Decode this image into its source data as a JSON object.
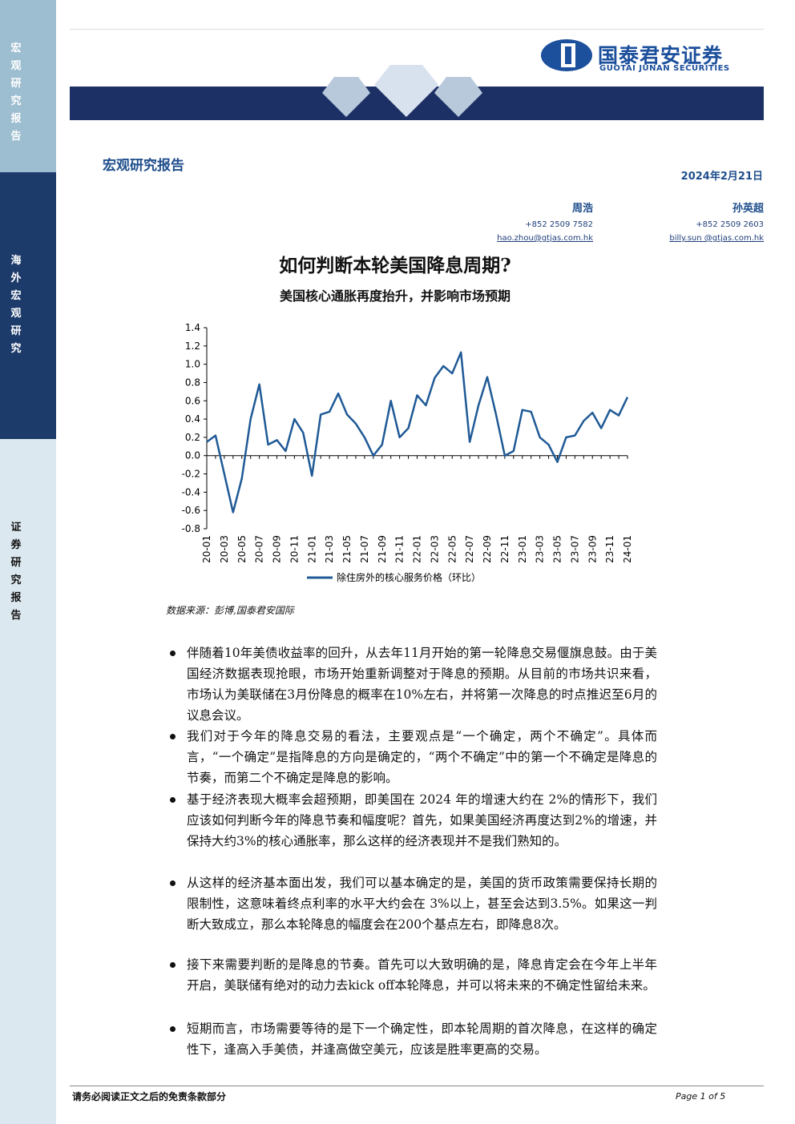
{
  "document": {
    "sidebar": [
      "宏观研究报告",
      "海外宏观研究",
      "证券研究报告"
    ],
    "logo": {
      "name": "国泰君安证券",
      "english": "GUOTAI JUNAN SECURITIES"
    },
    "report_type": "宏观研究报告",
    "date": "2024年2月21日",
    "authors": [
      {
        "name": "周浩",
        "phone": "+852 2509 7582",
        "email": "hao.zhou@gtjas.com.hk"
      },
      {
        "name": "孙英超",
        "phone": "+852 2509 2603",
        "email": "billy.sun @gtjas.com.hk"
      }
    ],
    "title": "如何判断本轮美国降息周期?",
    "subtitle": "美国核心通胀再度抬升，并影响市场预期",
    "source": "数据来源：彭博,国泰君安国际",
    "bullets": [
      "伴随着10年美债收益率的回升，从去年11月开始的第一轮降息交易偃旗息鼓。由于美国经济数据表现抢眼，市场开始重新调整对于降息的预期。从目前的市场共识来看，市场认为美联储在3月份降息的概率在10%左右，并将第一次降息的时点推迟至6月的议息会议。",
      "我们对于今年的降息交易的看法，主要观点是“一个确定，两个不确定”。具体而言，“一个确定”是指降息的方向是确定的，“两个不确定”中的第一个不确定是降息的节奏，而第二个不确定是降息的影响。",
      "基于经济表现大概率会超预期，即美国在 2024 年的增速大约在 2%的情形下，我们应该如何判断今年的降息节奏和幅度呢？首先，如果美国经济再度达到2%的增速，并保持大约3%的核心通胀率，那么这样的经济表现并不是我们熟知的。",
      "从这样的经济基本面出发，我们可以基本确定的是，美国的货币政策需要保持长期的限制性，这意味着终点利率的水平大约会在 3%以上，甚至会达到3.5%。如果这一判断大致成立，那么本轮降息的幅度会在200个基点左右，即降息8次。",
      "接下来需要判断的是降息的节奏。首先可以大致明确的是，降息肯定会在今年上半年开启，美联储有绝对的动力去kick off本轮降息，并可以将未来的不确定性留给未来。",
      "短期而言，市场需要等待的是下一个确定性，即本轮周期的首次降息，在这样的确定性下，逢高入手美债，并逢高做空美元，应该是胜率更高的交易。"
    ],
    "footer": {
      "disclaimer": "请务必阅读正文之后的免责条款部分",
      "page": "Page 1 of 5"
    }
  },
  "chart_data": {
    "type": "line",
    "categories": [
      "20-01",
      null,
      "20-03",
      null,
      "20-05",
      null,
      "20-07",
      null,
      "20-09",
      null,
      "20-11",
      null,
      "21-01",
      null,
      "21-03",
      null,
      "21-05",
      null,
      "21-07",
      null,
      "21-09",
      null,
      "21-11",
      null,
      "22-01",
      null,
      "22-03",
      null,
      "22-05",
      null,
      "22-07",
      null,
      "22-09",
      null,
      "22-11",
      null,
      "23-01",
      null,
      "23-03",
      null,
      "23-05",
      null,
      "23-07",
      null,
      "23-09",
      null,
      "23-11",
      null,
      "24-01"
    ],
    "series": [
      {
        "name": "除住房外的核心服务价格（环比）",
        "color": "#1f5a96",
        "values": [
          0.15,
          0.22,
          -0.2,
          -0.62,
          -0.25,
          0.4,
          0.78,
          0.12,
          0.17,
          0.05,
          0.4,
          0.25,
          -0.22,
          0.45,
          0.48,
          0.68,
          0.45,
          0.35,
          0.2,
          0.0,
          0.12,
          0.6,
          0.2,
          0.3,
          0.66,
          0.55,
          0.85,
          0.98,
          0.9,
          1.13,
          0.15,
          0.55,
          0.86,
          0.45,
          0.0,
          0.05,
          0.5,
          0.48,
          0.2,
          0.12,
          -0.07,
          0.2,
          0.22,
          0.38,
          0.47,
          0.3,
          0.5,
          0.44,
          0.64
        ]
      }
    ],
    "ylim": [
      -0.8,
      1.4
    ],
    "yticks": [
      -0.8,
      -0.6,
      -0.4,
      -0.2,
      {
        "value": 0,
        "label": "0.0"
      },
      0.2,
      0.4,
      0.6,
      0.8,
      {
        "value": 1,
        "label": "1.0"
      },
      1.2,
      1.4
    ],
    "legend": "bottom"
  }
}
